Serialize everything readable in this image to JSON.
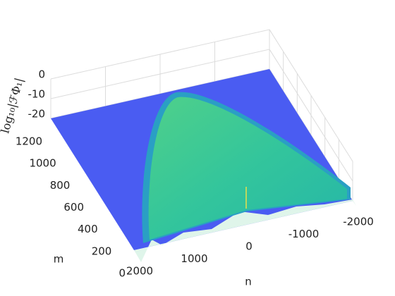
{
  "chart_data": {
    "type": "surface",
    "xlabel": "n",
    "ylabel": "m",
    "zlabel": "log₁₀|ℱΦ₁|",
    "xlim": [
      -2000,
      2000
    ],
    "xticks": [
      -2000,
      -1000,
      0,
      1000,
      2000
    ],
    "ylim": [
      0,
      1200
    ],
    "yticks": [
      0,
      200,
      400,
      600,
      800,
      1000,
      1200
    ],
    "zlim": [
      -20,
      0
    ],
    "zticks": [
      -20,
      -10,
      0
    ],
    "grid": true
  }
}
